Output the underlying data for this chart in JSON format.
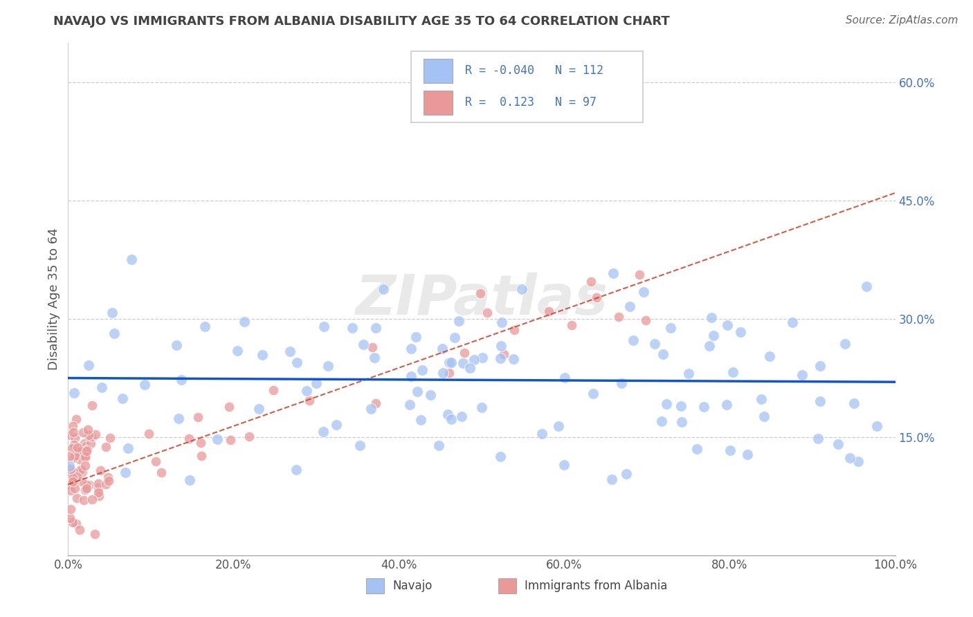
{
  "title": "NAVAJO VS IMMIGRANTS FROM ALBANIA DISABILITY AGE 35 TO 64 CORRELATION CHART",
  "source": "Source: ZipAtlas.com",
  "ylabel": "Disability Age 35 to 64",
  "navajo_R": -0.04,
  "navajo_N": 112,
  "albania_R": 0.123,
  "albania_N": 97,
  "xlim": [
    0.0,
    1.0
  ],
  "ylim": [
    0.0,
    0.65
  ],
  "xticks": [
    0.0,
    0.2,
    0.4,
    0.6,
    0.8,
    1.0
  ],
  "xticklabels": [
    "0.0%",
    "20.0%",
    "40.0%",
    "60.0%",
    "80.0%",
    "100.0%"
  ],
  "ytick_positions": [
    0.15,
    0.3,
    0.45,
    0.6
  ],
  "yticklabels": [
    "15.0%",
    "30.0%",
    "45.0%",
    "60.0%"
  ],
  "navajo_color": "#a4c2f4",
  "albania_color": "#ea9999",
  "navajo_line_color": "#1155cc",
  "albania_line_color": "#cc4125",
  "grid_color": "#cccccc",
  "watermark": "ZIPatlas",
  "legend_navajo_label": "Navajo",
  "legend_albania_label": "Immigrants from Albania",
  "navajo_line_y0": 0.225,
  "navajo_line_y1": 0.22,
  "albania_line_y0": 0.09,
  "albania_line_y1": 0.46,
  "background_color": "#ffffff",
  "tick_color": "#4472c4",
  "title_color": "#434343",
  "source_color": "#666666"
}
